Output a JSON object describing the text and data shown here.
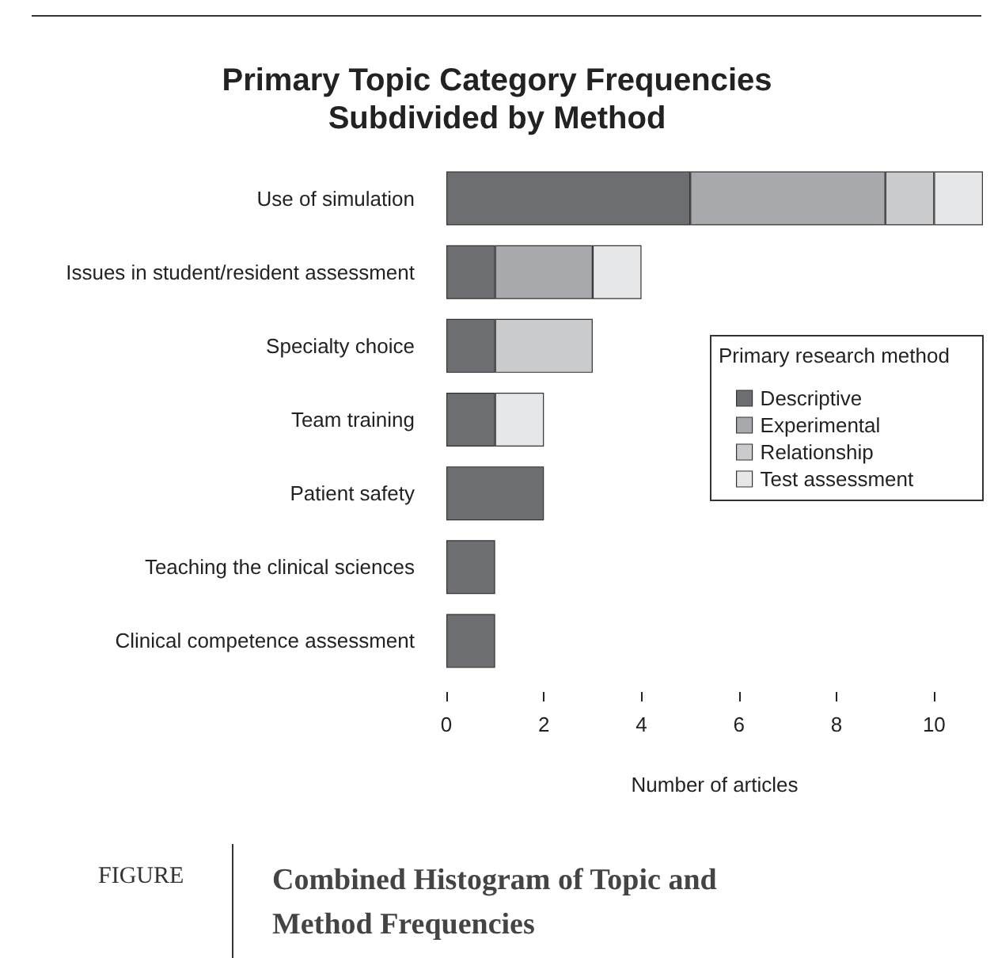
{
  "chart_data": {
    "type": "bar",
    "orientation": "horizontal",
    "stacked": true,
    "title": "Primary Topic Category Frequencies\nSubdivided by Method",
    "xlabel": "Number of articles",
    "legend_title": "Primary research method",
    "legend": "right",
    "categories": [
      "Use of simulation",
      "Issues in student/resident assessment",
      "Specialty choice",
      "Team training",
      "Patient safety",
      "Teaching the clinical sciences",
      "Clinical competence assessment"
    ],
    "series": [
      {
        "name": "Descriptive",
        "color": "#6d6e71",
        "values": [
          5,
          1,
          1,
          1,
          2,
          1,
          1
        ]
      },
      {
        "name": "Experimental",
        "color": "#a7a9ac",
        "values": [
          4,
          2,
          0,
          0,
          0,
          0,
          0
        ]
      },
      {
        "name": "Relationship",
        "color": "#cacbcd",
        "values": [
          1,
          0,
          2,
          0,
          0,
          0,
          0
        ]
      },
      {
        "name": "Test assessment",
        "color": "#e6e7e8",
        "values": [
          1,
          1,
          0,
          1,
          0,
          0,
          0
        ]
      }
    ],
    "xlim": [
      0,
      11
    ],
    "xticks": [
      0,
      2,
      4,
      6,
      8,
      10
    ],
    "annotations": [
      "FIGURE",
      "Combined Histogram of Topic and Method Frequencies"
    ]
  }
}
